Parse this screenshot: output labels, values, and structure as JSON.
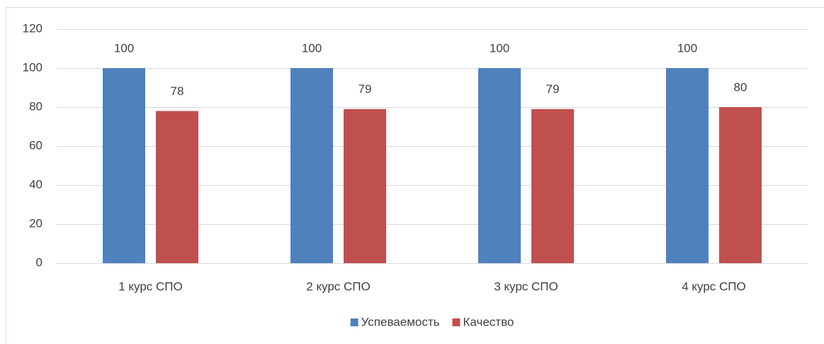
{
  "chart_data": {
    "type": "bar",
    "categories": [
      "1 курс СПО",
      "2 курс СПО",
      "3 курс СПО",
      "4 курс СПО"
    ],
    "series": [
      {
        "name": "Успеваемость",
        "color": "#4f81bd",
        "values": [
          100,
          100,
          100,
          100
        ]
      },
      {
        "name": "Качество",
        "color": "#c0504d",
        "values": [
          78,
          79,
          79,
          80
        ]
      }
    ],
    "ylim": [
      0,
      120
    ],
    "yticks": [
      0,
      20,
      40,
      60,
      80,
      100,
      120
    ],
    "grid": true,
    "legend": "bottom"
  }
}
